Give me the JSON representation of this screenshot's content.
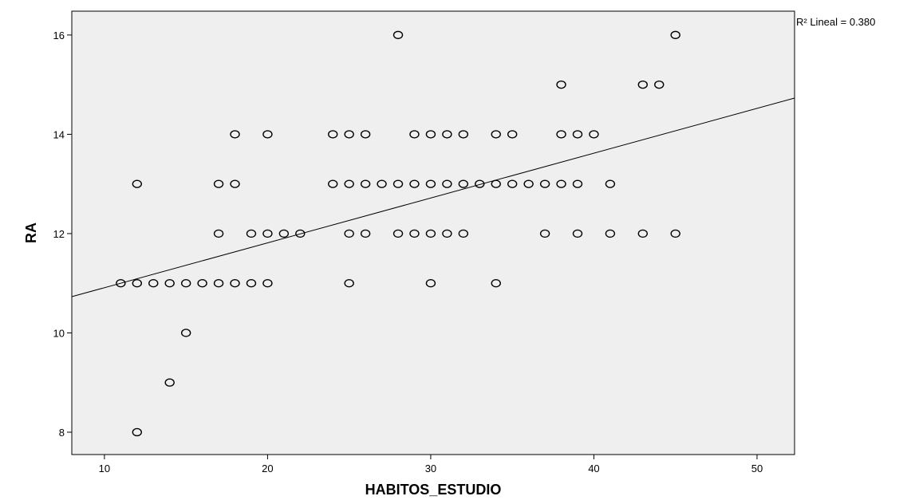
{
  "chart_data": {
    "type": "scatter",
    "title": "",
    "xlabel": "HABITOS_ESTUDIO",
    "ylabel": "RA",
    "xlim": [
      8,
      52.3
    ],
    "ylim": [
      7.55,
      16.48
    ],
    "xticks": [
      10,
      20,
      30,
      40,
      50
    ],
    "yticks": [
      8,
      10,
      12,
      14,
      16
    ],
    "grid": false,
    "background": "#efefef",
    "fit_line": {
      "type": "linear",
      "label": "R² Lineal = 0.380",
      "r2": 0.38,
      "x0": 8,
      "y0": 10.73,
      "x1": 52.3,
      "y1": 14.73
    },
    "points": [
      {
        "x": 12,
        "y": 8
      },
      {
        "x": 14,
        "y": 9
      },
      {
        "x": 15,
        "y": 10
      },
      {
        "x": 11,
        "y": 11
      },
      {
        "x": 12,
        "y": 11
      },
      {
        "x": 13,
        "y": 11
      },
      {
        "x": 14,
        "y": 11
      },
      {
        "x": 15,
        "y": 11
      },
      {
        "x": 16,
        "y": 11
      },
      {
        "x": 17,
        "y": 11
      },
      {
        "x": 18,
        "y": 11
      },
      {
        "x": 19,
        "y": 11
      },
      {
        "x": 20,
        "y": 11
      },
      {
        "x": 25,
        "y": 11
      },
      {
        "x": 30,
        "y": 11
      },
      {
        "x": 34,
        "y": 11
      },
      {
        "x": 17,
        "y": 12
      },
      {
        "x": 19,
        "y": 12
      },
      {
        "x": 20,
        "y": 12
      },
      {
        "x": 21,
        "y": 12
      },
      {
        "x": 22,
        "y": 12
      },
      {
        "x": 25,
        "y": 12
      },
      {
        "x": 26,
        "y": 12
      },
      {
        "x": 28,
        "y": 12
      },
      {
        "x": 29,
        "y": 12
      },
      {
        "x": 30,
        "y": 12
      },
      {
        "x": 31,
        "y": 12
      },
      {
        "x": 32,
        "y": 12
      },
      {
        "x": 37,
        "y": 12
      },
      {
        "x": 39,
        "y": 12
      },
      {
        "x": 41,
        "y": 12
      },
      {
        "x": 43,
        "y": 12
      },
      {
        "x": 45,
        "y": 12
      },
      {
        "x": 12,
        "y": 13
      },
      {
        "x": 17,
        "y": 13
      },
      {
        "x": 18,
        "y": 13
      },
      {
        "x": 24,
        "y": 13
      },
      {
        "x": 25,
        "y": 13
      },
      {
        "x": 26,
        "y": 13
      },
      {
        "x": 27,
        "y": 13
      },
      {
        "x": 28,
        "y": 13
      },
      {
        "x": 29,
        "y": 13
      },
      {
        "x": 30,
        "y": 13
      },
      {
        "x": 31,
        "y": 13
      },
      {
        "x": 32,
        "y": 13
      },
      {
        "x": 33,
        "y": 13
      },
      {
        "x": 34,
        "y": 13
      },
      {
        "x": 35,
        "y": 13
      },
      {
        "x": 36,
        "y": 13
      },
      {
        "x": 37,
        "y": 13
      },
      {
        "x": 38,
        "y": 13
      },
      {
        "x": 39,
        "y": 13
      },
      {
        "x": 41,
        "y": 13
      },
      {
        "x": 18,
        "y": 14
      },
      {
        "x": 20,
        "y": 14
      },
      {
        "x": 24,
        "y": 14
      },
      {
        "x": 25,
        "y": 14
      },
      {
        "x": 26,
        "y": 14
      },
      {
        "x": 29,
        "y": 14
      },
      {
        "x": 30,
        "y": 14
      },
      {
        "x": 31,
        "y": 14
      },
      {
        "x": 32,
        "y": 14
      },
      {
        "x": 34,
        "y": 14
      },
      {
        "x": 35,
        "y": 14
      },
      {
        "x": 38,
        "y": 14
      },
      {
        "x": 39,
        "y": 14
      },
      {
        "x": 40,
        "y": 14
      },
      {
        "x": 38,
        "y": 15
      },
      {
        "x": 43,
        "y": 15
      },
      {
        "x": 44,
        "y": 15
      },
      {
        "x": 28,
        "y": 16
      },
      {
        "x": 45,
        "y": 16
      }
    ]
  }
}
